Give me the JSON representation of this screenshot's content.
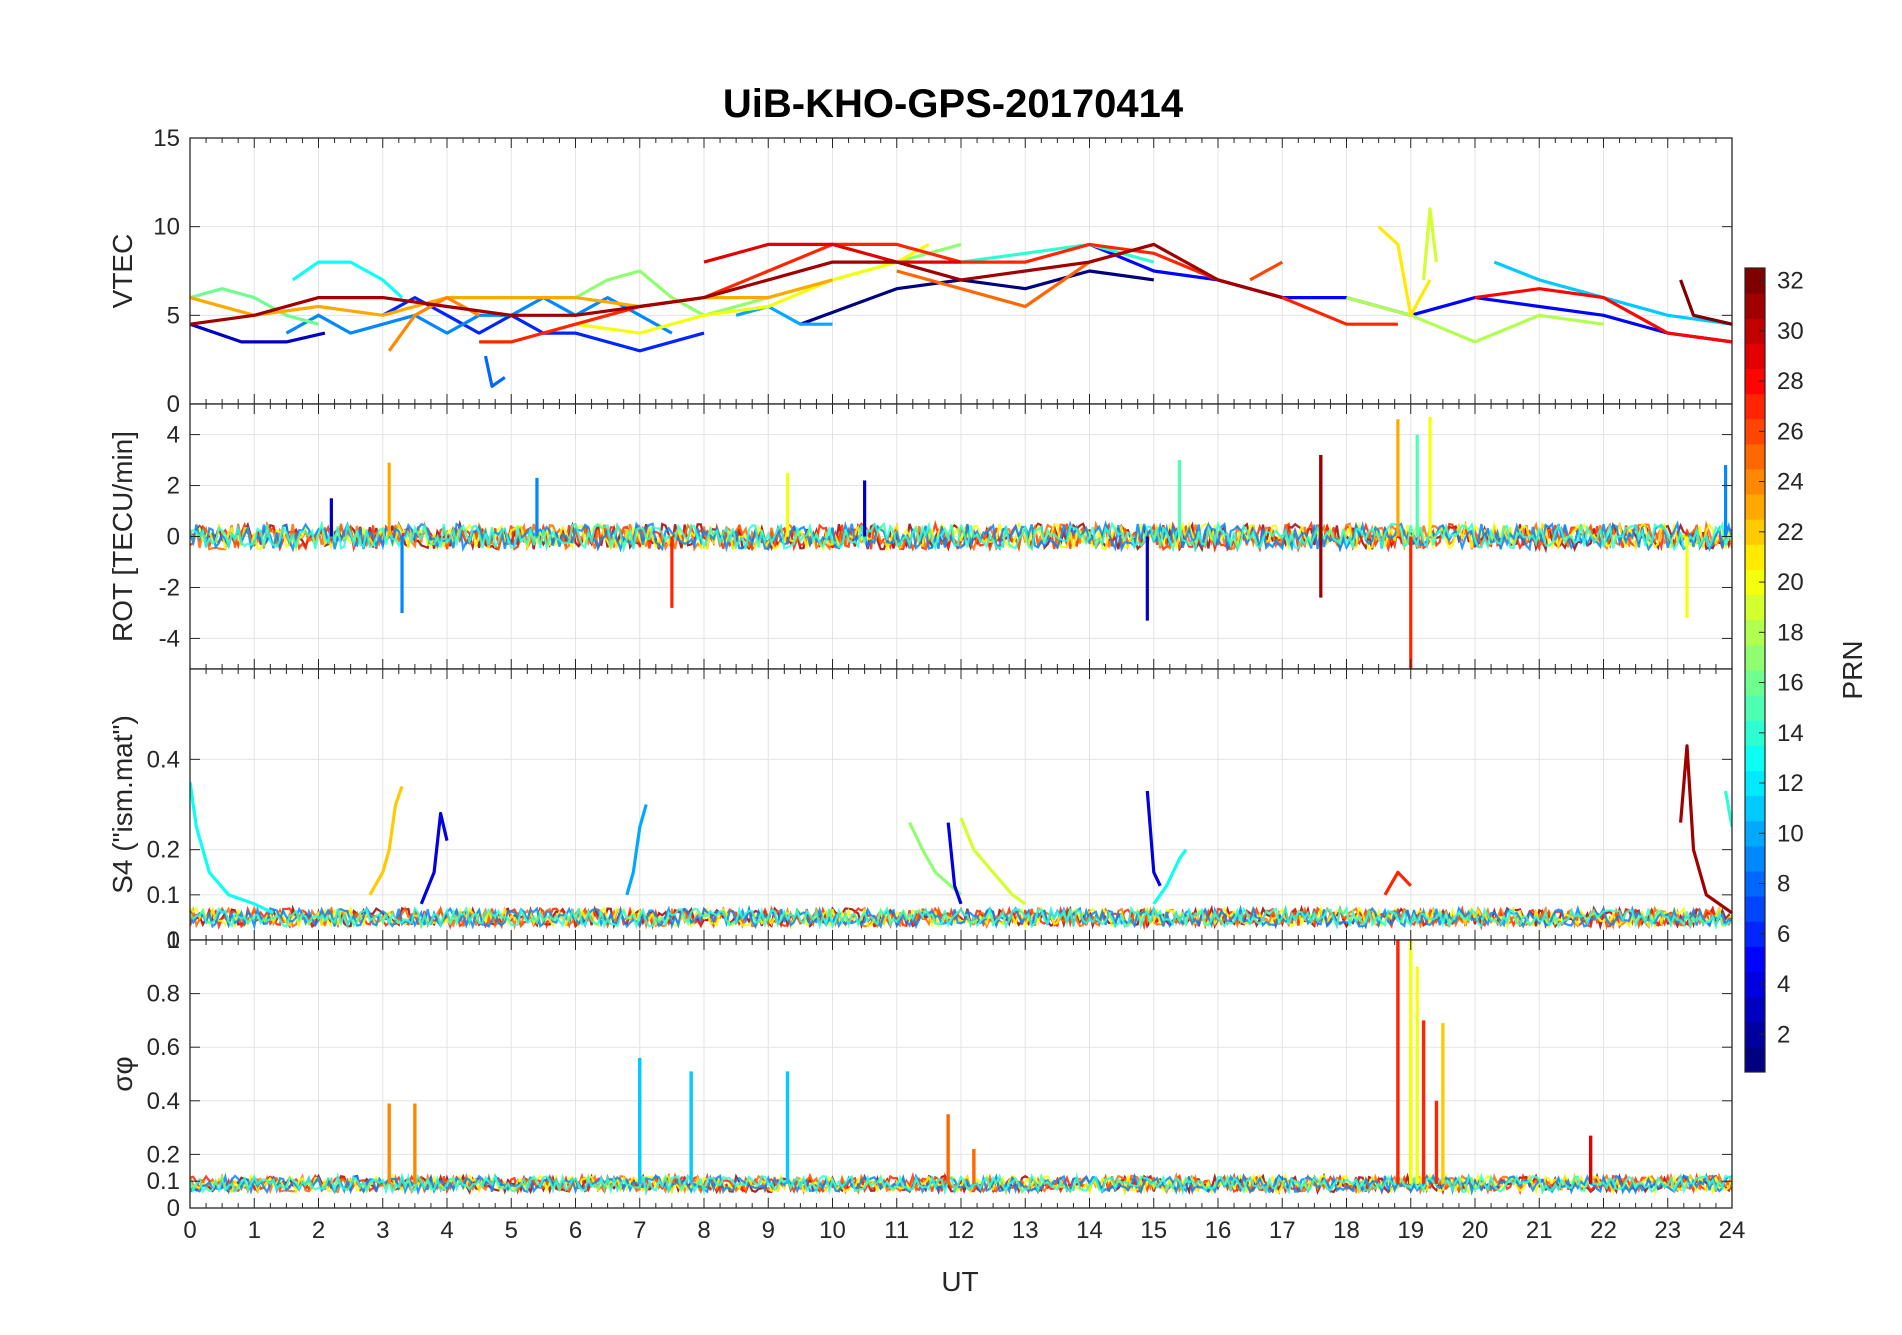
{
  "chart_data": {
    "type": "line",
    "title": "UiB-KHO-GPS-20170414",
    "xlabel": "UT",
    "x_ticks": [
      "0",
      "1",
      "2",
      "3",
      "4",
      "5",
      "6",
      "7",
      "8",
      "9",
      "10",
      "11",
      "12",
      "13",
      "14",
      "15",
      "16",
      "17",
      "18",
      "19",
      "20",
      "21",
      "22",
      "23",
      "24"
    ],
    "xlim": [
      0,
      24
    ],
    "grid": true,
    "colormap": "jet",
    "colorbar": {
      "label": "PRN",
      "range": [
        1,
        32
      ],
      "ticks": [
        "2",
        "4",
        "6",
        "8",
        "10",
        "12",
        "14",
        "16",
        "18",
        "20",
        "22",
        "24",
        "26",
        "28",
        "30",
        "32"
      ]
    },
    "panels": [
      {
        "id": "vtec",
        "ylabel": "VTEC",
        "ylim": [
          0,
          15
        ],
        "y_ticks": [
          0,
          5,
          10,
          15
        ],
        "y_tick_labels": [
          "0",
          "5",
          "10",
          "15"
        ],
        "series": [
          {
            "prn": 1,
            "x": [
              9.5,
              11,
              12,
              13,
              14,
              15
            ],
            "y": [
              4.5,
              6.5,
              7,
              6.5,
              7.5,
              7
            ]
          },
          {
            "prn": 3,
            "x": [
              0,
              0.8,
              1.5,
              2.1
            ],
            "y": [
              4.5,
              3.5,
              3.5,
              4
            ]
          },
          {
            "prn": 5,
            "x": [
              14,
              15,
              16,
              17,
              18,
              19,
              20,
              21,
              22,
              23,
              24
            ],
            "y": [
              9,
              7.5,
              7,
              6,
              6,
              5,
              6,
              5.5,
              5,
              4,
              3.5
            ]
          },
          {
            "prn": 6,
            "x": [
              3,
              3.5,
              4,
              4.5,
              5,
              5.5,
              6,
              7,
              8
            ],
            "y": [
              5,
              6,
              5,
              4,
              5,
              4,
              4,
              3,
              4
            ]
          },
          {
            "prn": 8,
            "x": [
              4.6,
              4.7,
              4.9
            ],
            "y": [
              2.7,
              1,
              1.5
            ]
          },
          {
            "prn": 9,
            "x": [
              1.5,
              2,
              2.5,
              3,
              3.5,
              4,
              4.5,
              5,
              5.5,
              6,
              6.5,
              7,
              7.5
            ],
            "y": [
              4,
              5,
              4,
              4.5,
              5,
              4,
              5,
              5,
              6,
              5,
              6,
              5,
              4
            ]
          },
          {
            "prn": 10,
            "x": [
              8.5,
              9,
              9.5,
              10
            ],
            "y": [
              5,
              5.5,
              4.5,
              4.5
            ]
          },
          {
            "prn": 11,
            "x": [
              20.3,
              21,
              22,
              23,
              24
            ],
            "y": [
              8,
              7,
              6,
              5,
              4.5
            ]
          },
          {
            "prn": 13,
            "x": [
              1.6,
              2,
              2.5,
              3,
              3.3
            ],
            "y": [
              7,
              8,
              8,
              7,
              6
            ]
          },
          {
            "prn": 14,
            "x": [
              12,
              13,
              14,
              15
            ],
            "y": [
              8,
              8.5,
              9,
              8
            ]
          },
          {
            "prn": 16,
            "x": [
              0,
              0.5,
              1,
              1.5,
              2
            ],
            "y": [
              6,
              6.5,
              6,
              5,
              4.5
            ]
          },
          {
            "prn": 17,
            "x": [
              6,
              6.5,
              7,
              7.5,
              8,
              8.5,
              9,
              10,
              11,
              12
            ],
            "y": [
              6,
              7,
              7.5,
              6,
              5,
              5.5,
              6,
              7,
              8,
              9
            ]
          },
          {
            "prn": 18,
            "x": [
              18,
              19,
              20,
              21,
              22
            ],
            "y": [
              6,
              5,
              3.5,
              5,
              4.5
            ]
          },
          {
            "prn": 19,
            "x": [
              19.2,
              19.3,
              19.4
            ],
            "y": [
              7,
              11,
              8
            ]
          },
          {
            "prn": 20,
            "x": [
              6,
              7,
              8,
              9,
              10,
              11,
              11.5
            ],
            "y": [
              4.5,
              4,
              5,
              5.5,
              7,
              8,
              9
            ]
          },
          {
            "prn": 21,
            "x": [
              18.5,
              18.8,
              19,
              19.3
            ],
            "y": [
              10,
              9,
              5,
              7
            ]
          },
          {
            "prn": 23,
            "x": [
              0,
              1,
              2,
              3,
              4,
              5,
              6,
              7,
              8,
              9,
              10
            ],
            "y": [
              6,
              5,
              5.5,
              5,
              6,
              6,
              6,
              5.5,
              6,
              6,
              7
            ]
          },
          {
            "prn": 24,
            "x": [
              3.1,
              3.5,
              4,
              4.5
            ],
            "y": [
              3,
              5,
              6,
              5
            ]
          },
          {
            "prn": 25,
            "x": [
              11,
              12,
              13,
              14,
              15
            ],
            "y": [
              7.5,
              6.5,
              5.5,
              8,
              9
            ]
          },
          {
            "prn": 26,
            "x": [
              16.5,
              17
            ],
            "y": [
              7,
              8
            ]
          },
          {
            "prn": 27,
            "x": [
              4.5,
              5,
              5.5,
              6,
              7,
              8,
              9,
              10,
              11,
              12,
              13,
              14,
              15,
              16,
              17,
              18,
              18.8
            ],
            "y": [
              3.5,
              3.5,
              4,
              4.5,
              5.5,
              6,
              7.5,
              9,
              9,
              8,
              8,
              9,
              8.5,
              7,
              6,
              4.5,
              4.5
            ]
          },
          {
            "prn": 28,
            "x": [
              20,
              21,
              22,
              23,
              24
            ],
            "y": [
              6,
              6.5,
              6,
              4,
              3.5
            ]
          },
          {
            "prn": 29,
            "x": [
              8,
              9,
              10,
              11,
              12
            ],
            "y": [
              8,
              9,
              9,
              8,
              8
            ]
          },
          {
            "prn": 31,
            "x": [
              0,
              1,
              2,
              3,
              4,
              5,
              6,
              7,
              8,
              9,
              10,
              11,
              12,
              13,
              14,
              15,
              16,
              17
            ],
            "y": [
              4.5,
              5,
              6,
              6,
              5.5,
              5,
              5,
              5.5,
              6,
              7,
              8,
              8,
              7,
              7.5,
              8,
              9,
              7,
              6
            ]
          },
          {
            "prn": 32,
            "x": [
              23.2,
              23.4,
              24
            ],
            "y": [
              7,
              5,
              4.5
            ]
          }
        ]
      },
      {
        "id": "rot",
        "ylabel": "ROT [TECU/min]",
        "ylim": [
          -5.2,
          5.2
        ],
        "y_ticks": [
          -4,
          -2,
          0,
          2,
          4
        ],
        "y_tick_labels": [
          "-4",
          "-2",
          "0",
          "2",
          "4"
        ],
        "series": [
          {
            "prn": 3,
            "x": [
              2.2,
              2.2,
              10.5,
              10.5,
              14.9,
              14.9
            ],
            "y": [
              0,
              1.5,
              0,
              2.2,
              0,
              -3.3
            ]
          },
          {
            "prn": 9,
            "x": [
              3.3,
              3.3,
              5.4,
              5.4,
              23.9,
              23.9
            ],
            "y": [
              0,
              -3,
              0,
              2.3,
              0,
              2.8
            ]
          },
          {
            "prn": 15,
            "x": [
              15.4,
              15.4,
              19.1,
              19.1
            ],
            "y": [
              0,
              3,
              0,
              4
            ]
          },
          {
            "prn": 20,
            "x": [
              9.3,
              9.3,
              19.3,
              19.3,
              23.3,
              23.3
            ],
            "y": [
              0,
              2.5,
              0,
              4.7,
              0,
              -3.2
            ]
          },
          {
            "prn": 23,
            "x": [
              3.1,
              3.1,
              18.8,
              18.8
            ],
            "y": [
              0,
              2.9,
              0,
              4.6
            ]
          },
          {
            "prn": 27,
            "x": [
              7.5,
              7.5,
              19.0,
              19.0
            ],
            "y": [
              0,
              -2.8,
              0,
              -5.2
            ]
          },
          {
            "prn": 31,
            "x": [
              17.6,
              17.6,
              17.6
            ],
            "y": [
              0,
              3.2,
              -2.4
            ]
          }
        ]
      },
      {
        "id": "s4",
        "ylabel": "S4 (\"ism.mat\")",
        "ylim": [
          0,
          0.6
        ],
        "y_ticks": [
          0,
          0.1,
          0.2,
          0.4
        ],
        "y_tick_labels": [
          "0",
          "0.1",
          "0.2",
          "0.4"
        ],
        "series": [
          {
            "prn": 13,
            "x": [
              0,
              0.1,
              0.3,
              0.6,
              1,
              1.3
            ],
            "y": [
              0.35,
              0.25,
              0.15,
              0.1,
              0.08,
              0.06
            ]
          },
          {
            "prn": 22,
            "x": [
              2.8,
              3,
              3.1,
              3.2,
              3.3
            ],
            "y": [
              0.1,
              0.15,
              0.2,
              0.3,
              0.34
            ]
          },
          {
            "prn": 4,
            "x": [
              3.6,
              3.8,
              3.9,
              4
            ],
            "y": [
              0.08,
              0.15,
              0.28,
              0.22
            ]
          },
          {
            "prn": 10,
            "x": [
              6.8,
              6.9,
              7,
              7.1
            ],
            "y": [
              0.1,
              0.15,
              0.25,
              0.3
            ]
          },
          {
            "prn": 17,
            "x": [
              11.2,
              11.4,
              11.6,
              12
            ],
            "y": [
              0.26,
              0.2,
              0.15,
              0.1
            ]
          },
          {
            "prn": 4,
            "x": [
              11.8,
              11.9,
              12
            ],
            "y": [
              0.26,
              0.12,
              0.08
            ]
          },
          {
            "prn": 19,
            "x": [
              12,
              12.2,
              12.5,
              12.8,
              13
            ],
            "y": [
              0.27,
              0.2,
              0.15,
              0.1,
              0.08
            ]
          },
          {
            "prn": 4,
            "x": [
              14.9,
              15,
              15.1
            ],
            "y": [
              0.33,
              0.15,
              0.12
            ]
          },
          {
            "prn": 13,
            "x": [
              15,
              15.2,
              15.4,
              15.5
            ],
            "y": [
              0.08,
              0.12,
              0.18,
              0.2
            ]
          },
          {
            "prn": 27,
            "x": [
              18.6,
              18.8,
              19
            ],
            "y": [
              0.1,
              0.15,
              0.12
            ]
          },
          {
            "prn": 31,
            "x": [
              23.2,
              23.3,
              23.4,
              23.6,
              24
            ],
            "y": [
              0.26,
              0.43,
              0.2,
              0.1,
              0.06
            ]
          },
          {
            "prn": 14,
            "x": [
              23.9,
              24
            ],
            "y": [
              0.33,
              0.25
            ]
          }
        ]
      },
      {
        "id": "sigma",
        "ylabel": "σφ",
        "ylim": [
          0,
          1
        ],
        "y_ticks": [
          0,
          0.1,
          0.2,
          0.4,
          0.6,
          0.8,
          1
        ],
        "y_tick_labels": [
          "0",
          "0.1",
          "0.2",
          "0.4",
          "0.6",
          "0.8",
          "1"
        ],
        "series": [
          {
            "prn": 24,
            "x": [
              3.1,
              3.5
            ],
            "y": [
              0.39,
              0.39
            ]
          },
          {
            "prn": 11,
            "x": [
              7,
              7.8,
              9.3
            ],
            "y": [
              0.56,
              0.51,
              0.51
            ]
          },
          {
            "prn": 25,
            "x": [
              11.8,
              12.2
            ],
            "y": [
              0.35,
              0.22
            ]
          },
          {
            "prn": 27,
            "x": [
              18.8,
              19,
              19.2,
              19.4
            ],
            "y": [
              1,
              0.6,
              0.7,
              0.4
            ]
          },
          {
            "prn": 20,
            "x": [
              19.0,
              19.1
            ],
            "y": [
              1,
              0.9
            ]
          },
          {
            "prn": 22,
            "x": [
              19.5
            ],
            "y": [
              0.69
            ]
          },
          {
            "prn": 29,
            "x": [
              21.8
            ],
            "y": [
              0.27
            ]
          }
        ]
      }
    ]
  }
}
